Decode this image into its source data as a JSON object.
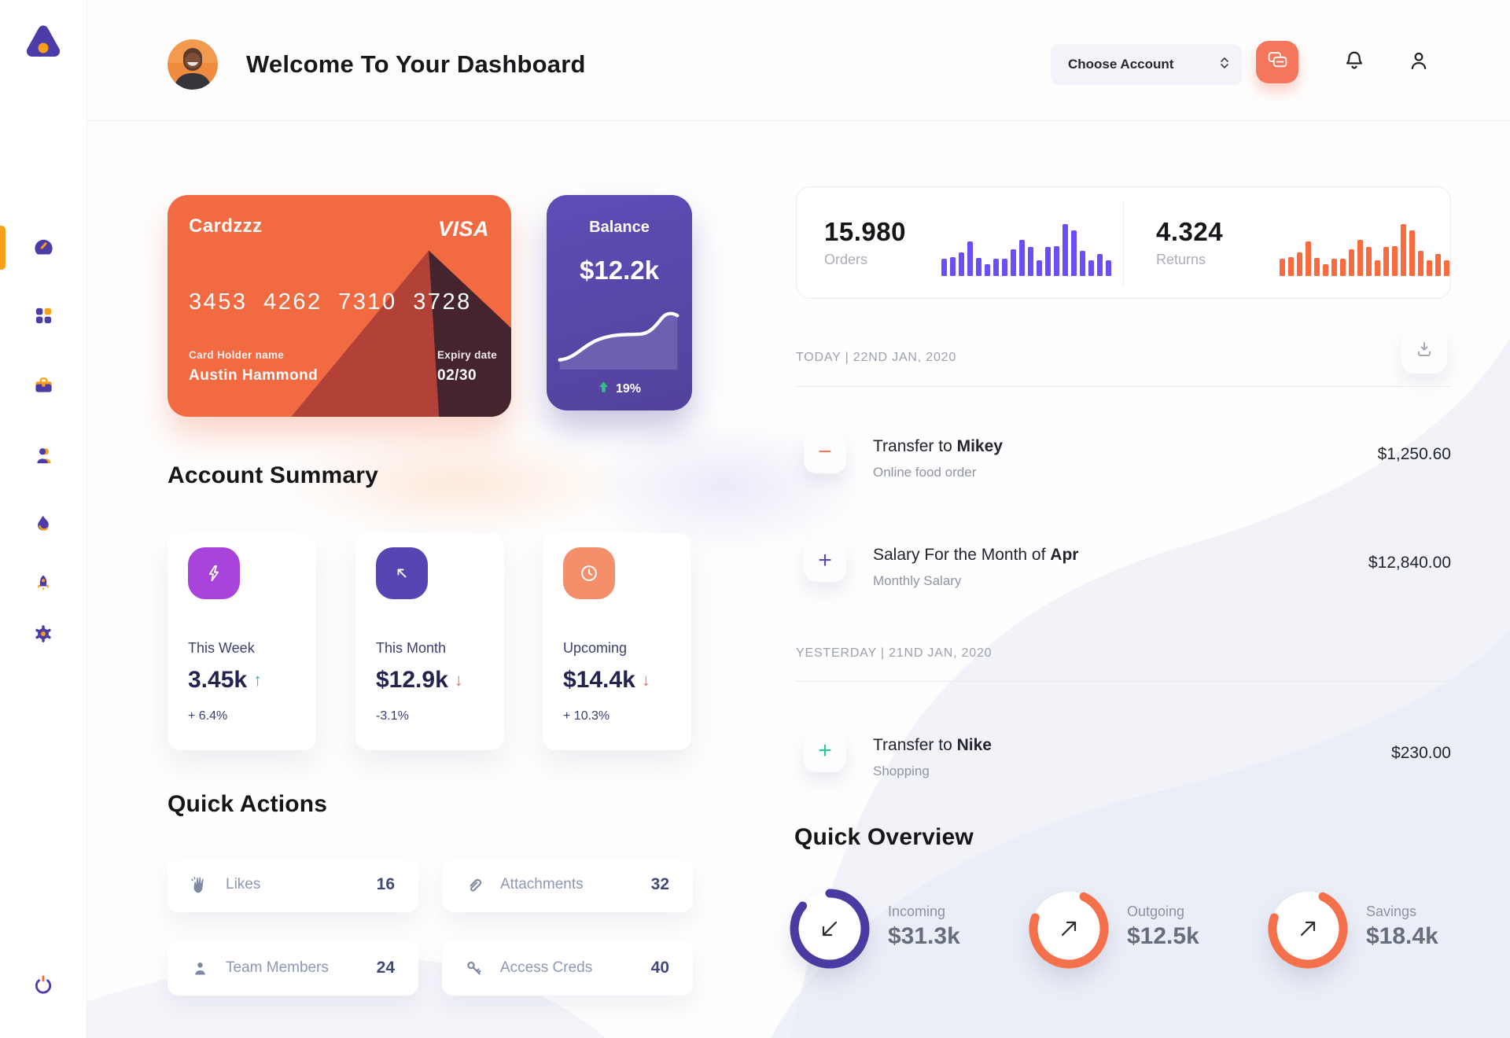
{
  "header": {
    "title": "Welcome To Your Dashboard",
    "account_selector_label": "Choose Account",
    "icons": {
      "messages": "chat-bubbles-icon",
      "notifications": "bell-icon",
      "profile": "user-icon"
    }
  },
  "sidebar": {
    "logo_icon": "triangle-logo",
    "items": [
      {
        "id": "dashboard",
        "icon": "speedometer-icon",
        "active": true
      },
      {
        "id": "apps",
        "icon": "grid-icon",
        "active": false
      },
      {
        "id": "work",
        "icon": "briefcase-icon",
        "active": false
      },
      {
        "id": "contacts",
        "icon": "people-icon",
        "active": false
      },
      {
        "id": "trending",
        "icon": "flame-icon",
        "active": false
      },
      {
        "id": "launch",
        "icon": "rocket-icon",
        "active": false
      },
      {
        "id": "settings",
        "icon": "gear-icon",
        "active": false
      }
    ],
    "logout_icon": "power-icon"
  },
  "credit_card": {
    "name": "Cardzzz",
    "brand": "VISA",
    "number": "3453 4262 7310 3728",
    "holder_label": "Card Holder name",
    "holder_name": "Austin Hammond",
    "expiry_label": "Expiry date",
    "expiry": "02/30"
  },
  "balance_card": {
    "title": "Balance",
    "amount": "$12.2k",
    "change": "19%",
    "change_direction": "up"
  },
  "stats": {
    "orders": {
      "value": "15.980",
      "label": "Orders",
      "bar_color": "#6b4ef5",
      "bars": [
        34,
        36,
        46,
        66,
        35,
        22,
        33,
        34,
        52,
        70,
        56,
        31,
        56,
        57,
        100,
        88,
        48,
        31,
        43,
        30
      ]
    },
    "returns": {
      "value": "4.324",
      "label": "Returns",
      "bar_color": "#f76b3f",
      "bars": [
        34,
        36,
        46,
        66,
        35,
        22,
        33,
        34,
        52,
        70,
        56,
        31,
        56,
        57,
        100,
        88,
        48,
        31,
        43,
        30
      ]
    }
  },
  "activity": {
    "download_icon": "download-icon",
    "groups": [
      {
        "label": "TODAY | 22ND JAN, 2020",
        "rows": [
          {
            "icon": "minus-icon",
            "symbol": "−",
            "color": "#f4765b",
            "title_prefix": "Transfer to ",
            "title_bold": "Mikey",
            "subtitle": "Online food order",
            "amount": "$1,250.60"
          },
          {
            "icon": "plus-icon",
            "symbol": "+",
            "color": "#5a49b8",
            "title_prefix": "Salary For the Month of ",
            "title_bold": "Apr",
            "subtitle": "Monthly Salary",
            "amount": "$12,840.00"
          }
        ]
      },
      {
        "label": "YESTERDAY | 21ND JAN, 2020",
        "rows": [
          {
            "icon": "plus-icon",
            "symbol": "+",
            "color": "#2fc59b",
            "title_prefix": "Transfer to ",
            "title_bold": "Nike",
            "subtitle": "Shopping",
            "amount": "$230.00"
          }
        ]
      }
    ]
  },
  "summary": {
    "heading": "Account Summary",
    "cards": [
      {
        "icon": "lightning-icon",
        "icon_bg": "#a844d9",
        "label": "This Week",
        "value": "3.45k",
        "arrow": "↑",
        "arrow_color": "#2fbf87",
        "delta": "+ 6.4%"
      },
      {
        "icon": "arrow-up-left-icon",
        "icon_bg": "#5545b2",
        "label": "This Month",
        "value": "$12.9k",
        "arrow": "↓",
        "arrow_color": "#e8695f",
        "delta": "-3.1%"
      },
      {
        "icon": "clock-icon",
        "icon_bg": "#f48e6b",
        "label": "Upcoming",
        "value": "$14.4k",
        "arrow": "↓",
        "arrow_color": "#e8695f",
        "delta": "+ 10.3%"
      }
    ]
  },
  "quick_actions": {
    "heading": "Quick Actions",
    "items": [
      {
        "icon": "clap-icon",
        "label": "Likes",
        "count": "16"
      },
      {
        "icon": "paperclip-icon",
        "label": "Attachments",
        "count": "32"
      },
      {
        "icon": "member-icon",
        "label": "Team Members",
        "count": "24"
      },
      {
        "icon": "key-icon",
        "label": "Access Creds",
        "count": "40"
      }
    ]
  },
  "overview": {
    "heading": "Quick Overview",
    "gauges": [
      {
        "icon": "arrow-down-left-icon",
        "label": "Incoming",
        "value": "$31.3k",
        "pct": 86,
        "rotate": -90,
        "color": "#4a3ba2",
        "direction": "in"
      },
      {
        "icon": "arrow-up-right-icon",
        "label": "Outgoing",
        "value": "$12.5k",
        "pct": 73,
        "rotate": -65,
        "color": "#f4714c",
        "direction": "out"
      },
      {
        "icon": "arrow-up-right-icon",
        "label": "Savings",
        "value": "$18.4k",
        "pct": 73,
        "rotate": -65,
        "color": "#f4714c",
        "direction": "out"
      }
    ]
  },
  "colors": {
    "primary_purple": "#4b3ca7",
    "accent_orange": "#f9a01b",
    "card_orange": "#f26a42",
    "balance_purple": "#584aad",
    "salmon": "#f5765c",
    "green": "#2fc59b",
    "bar_purple": "#6b4ef5",
    "bar_orange": "#f76b3f"
  }
}
